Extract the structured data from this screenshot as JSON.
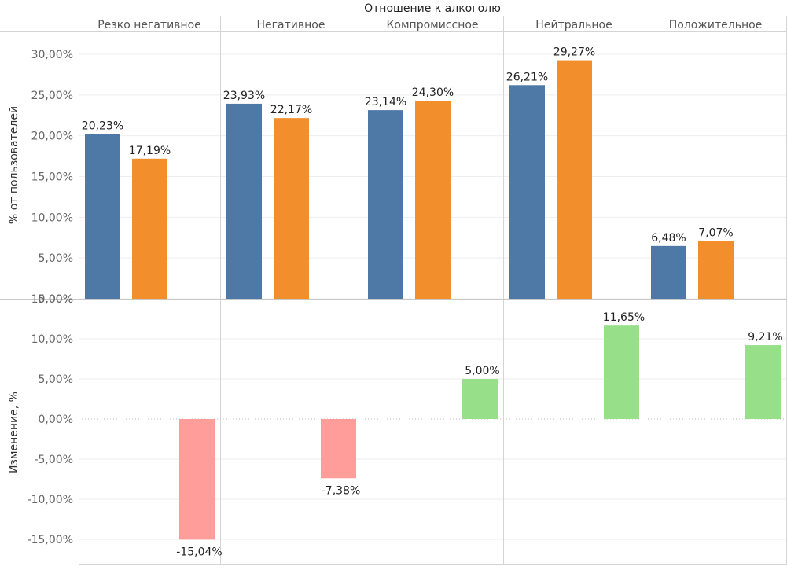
{
  "chart_data": [
    {
      "type": "bar",
      "title": "Отношение к алкоголю",
      "ylabel": "% от пользователей",
      "categories": [
        "Резко негативное",
        "Негативное",
        "Компромиссное",
        "Нейтральное",
        "Положительное"
      ],
      "series": [
        {
          "values": [
            20.23,
            23.93,
            23.14,
            26.21,
            6.48
          ],
          "color": "#4e79a7"
        },
        {
          "values": [
            17.19,
            22.17,
            24.3,
            29.27,
            7.07
          ],
          "color": "#f28e2b"
        }
      ],
      "value_labels": [
        [
          "20,23%",
          "23,93%",
          "23,14%",
          "26,21%",
          "6,48%"
        ],
        [
          "17,19%",
          "22,17%",
          "24,30%",
          "29,27%",
          "7,07%"
        ]
      ],
      "ylim": [
        0,
        32
      ],
      "y_ticks": [
        0,
        5,
        10,
        15,
        20,
        25,
        30
      ],
      "y_tick_labels": [
        "0,00%",
        "5,00%",
        "10,00%",
        "15,00%",
        "20,00%",
        "25,00%",
        "30,00%"
      ],
      "grid": true
    },
    {
      "type": "bar",
      "ylabel": "Изменение, %",
      "categories": [
        "Резко негативное",
        "Негативное",
        "Компромиссное",
        "Нейтральное",
        "Положительное"
      ],
      "values": [
        -15.04,
        -7.38,
        5.0,
        11.65,
        9.21
      ],
      "value_labels": [
        "-15,04%",
        "-7,38%",
        "5,00%",
        "11,65%",
        "9,21%"
      ],
      "colors": {
        "positive": "#98df8a",
        "negative": "#ff9d9a"
      },
      "ylim": [
        -18,
        15.5
      ],
      "y_ticks": [
        -15,
        -10,
        -5,
        0,
        5,
        10,
        15
      ],
      "y_tick_labels": [
        "-15,00%",
        "-10,00%",
        "-5,00%",
        "0,00%",
        "5,00%",
        "10,00%",
        "15,00%"
      ],
      "grid": true
    }
  ]
}
